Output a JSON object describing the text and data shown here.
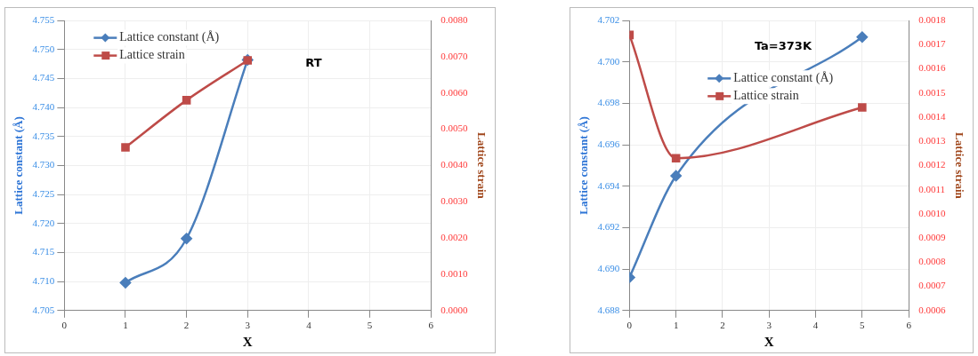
{
  "chart_data": [
    {
      "type": "line",
      "title": "RT",
      "xlabel": "X",
      "ylabel": "Lattice constant (Å)",
      "y2label": "Lattice strain",
      "xlim": [
        0,
        6
      ],
      "xticks": [
        0,
        1,
        2,
        3,
        4,
        5,
        6
      ],
      "ylim": [
        4.705,
        4.755
      ],
      "yticks": [
        {
          "value": 4.705,
          "label": "4.705"
        },
        {
          "value": 4.71,
          "label": "4.710"
        },
        {
          "value": 4.715,
          "label": "4.715"
        },
        {
          "value": 4.72,
          "label": "4.720"
        },
        {
          "value": 4.725,
          "label": "4.725"
        },
        {
          "value": 4.73,
          "label": "4.730"
        },
        {
          "value": 4.735,
          "label": "4.735"
        },
        {
          "value": 4.74,
          "label": "4.740"
        },
        {
          "value": 4.745,
          "label": "4.745"
        },
        {
          "value": 4.75,
          "label": "4.750"
        },
        {
          "value": 4.755,
          "label": "4.755"
        }
      ],
      "y2lim": [
        0,
        0.008
      ],
      "y2ticks": [
        {
          "value": 0,
          "label": "0.0000"
        },
        {
          "value": 0.001,
          "label": "0.0010"
        },
        {
          "value": 0.002,
          "label": "0.0020"
        },
        {
          "value": 0.003,
          "label": "0.0030"
        },
        {
          "value": 0.004,
          "label": "0.0040"
        },
        {
          "value": 0.005,
          "label": "0.0050"
        },
        {
          "value": 0.006,
          "label": "0.0060"
        },
        {
          "value": 0.007,
          "label": "0.0070"
        },
        {
          "value": 0.008,
          "label": "0.0080"
        }
      ],
      "grid": true,
      "legend": "top left",
      "series": [
        {
          "name": "Lattice constant (Å)",
          "color": "#4a7ebb",
          "marker": "diamond",
          "x": [
            1,
            2,
            3
          ],
          "values": [
            4.7098,
            4.7174,
            4.7482
          ]
        },
        {
          "name": "Lattice strain",
          "color": "#be4b48",
          "marker": "square",
          "axis": "y2",
          "x": [
            1,
            2,
            3
          ],
          "values": [
            0.0045,
            0.0058,
            0.0069
          ]
        }
      ]
    },
    {
      "type": "line",
      "title": "Ta=373K",
      "xlabel": "X",
      "ylabel": "Lattice constant (Å)",
      "y2label": "Lattice strain",
      "xlim": [
        0,
        6
      ],
      "xticks": [
        0,
        1,
        2,
        3,
        4,
        5,
        6
      ],
      "ylim": [
        4.688,
        4.702
      ],
      "yticks": [
        {
          "value": 4.688,
          "label": "4.688"
        },
        {
          "value": 4.69,
          "label": "4.690"
        },
        {
          "value": 4.692,
          "label": "4.692"
        },
        {
          "value": 4.694,
          "label": "4.694"
        },
        {
          "value": 4.696,
          "label": "4.696"
        },
        {
          "value": 4.698,
          "label": "4.698"
        },
        {
          "value": 4.7,
          "label": "4.700"
        },
        {
          "value": 4.702,
          "label": "4.702"
        }
      ],
      "y2lim": [
        0.0006,
        0.0018
      ],
      "y2ticks": [
        {
          "value": 0.0006,
          "label": "0.0006"
        },
        {
          "value": 0.0007,
          "label": "0.0007"
        },
        {
          "value": 0.0008,
          "label": "0.0008"
        },
        {
          "value": 0.0009,
          "label": "0.0009"
        },
        {
          "value": 0.001,
          "label": "0.0010"
        },
        {
          "value": 0.0011,
          "label": "0.0011"
        },
        {
          "value": 0.0012,
          "label": "0.0012"
        },
        {
          "value": 0.0013,
          "label": "0.0013"
        },
        {
          "value": 0.0014,
          "label": "0.0014"
        },
        {
          "value": 0.0015,
          "label": "0.0015"
        },
        {
          "value": 0.0016,
          "label": "0.0016"
        },
        {
          "value": 0.0017,
          "label": "0.0017"
        },
        {
          "value": 0.0018,
          "label": "0.0018"
        }
      ],
      "grid": true,
      "legend": "top",
      "series": [
        {
          "name": "Lattice constant (Å)",
          "color": "#4a7ebb",
          "marker": "diamond",
          "x": [
            0,
            1,
            5
          ],
          "values": [
            4.6896,
            4.6945,
            4.7012
          ]
        },
        {
          "name": "Lattice strain",
          "color": "#be4b48",
          "marker": "square",
          "axis": "y2",
          "x": [
            0,
            1,
            5
          ],
          "values": [
            0.00174,
            0.00123,
            0.00144
          ]
        }
      ]
    }
  ]
}
